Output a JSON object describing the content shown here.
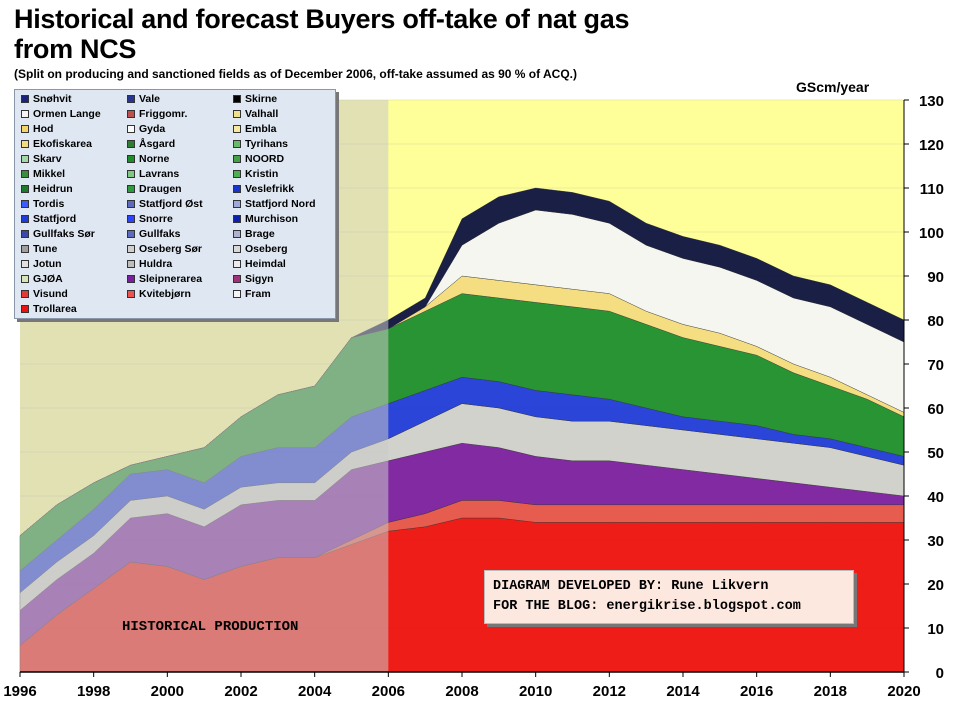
{
  "title": "Historical and forecast Buyers off-take of nat gas from NCS",
  "subtitle": "(Split on producing and sanctioned fields as of December 2006, off-take assumed as 90 % of ACQ.)",
  "unit_label": "GScm/year",
  "historical_label": "HISTORICAL PRODUCTION",
  "credit": {
    "line1": "DIAGRAM DEVELOPED BY: Rune Likvern",
    "line2": "FOR THE BLOG: energikrise.blogspot.com"
  },
  "colors": {
    "plot_bg": "#ffff99",
    "historical_overlay": "#c8c8c8",
    "legend_bg": "#dfe7f2"
  },
  "legend": [
    {
      "name": "Snøhvit",
      "color": "#1a237e"
    },
    {
      "name": "Vale",
      "color": "#283593"
    },
    {
      "name": "Skirne",
      "color": "#000000"
    },
    {
      "name": "Ormen Lange",
      "color": "#f5f5f5"
    },
    {
      "name": "Friggomr.",
      "color": "#c0504d"
    },
    {
      "name": "Valhall",
      "color": "#f0e08a"
    },
    {
      "name": "Hod",
      "color": "#f5d36b"
    },
    {
      "name": "Gyda",
      "color": "#fafafa"
    },
    {
      "name": "Embla",
      "color": "#f7e9a0"
    },
    {
      "name": "Ekofiskarea",
      "color": "#f3dc80"
    },
    {
      "name": "Åsgard",
      "color": "#2e7d32"
    },
    {
      "name": "Tyrihans",
      "color": "#66bb6a"
    },
    {
      "name": "Skarv",
      "color": "#a5d6a7"
    },
    {
      "name": "Norne",
      "color": "#1b8e2a"
    },
    {
      "name": "NOORD",
      "color": "#43a047"
    },
    {
      "name": "Mikkel",
      "color": "#388e3c"
    },
    {
      "name": "Lavrans",
      "color": "#81c784"
    },
    {
      "name": "Kristin",
      "color": "#4caf50"
    },
    {
      "name": "Heidrun",
      "color": "#1e7b2e"
    },
    {
      "name": "Draugen",
      "color": "#2e9b3e"
    },
    {
      "name": "Veslefrikk",
      "color": "#1a33cc"
    },
    {
      "name": "Tordis",
      "color": "#3d5afe"
    },
    {
      "name": "Statfjord Øst",
      "color": "#5c6bc0"
    },
    {
      "name": "Statfjord Nord",
      "color": "#9fa8da"
    },
    {
      "name": "Statfjord",
      "color": "#1f3bdb"
    },
    {
      "name": "Snorre",
      "color": "#2c44ff"
    },
    {
      "name": "Murchison",
      "color": "#0d1fb3"
    },
    {
      "name": "Gullfaks Sør",
      "color": "#3949ab"
    },
    {
      "name": "Gullfaks",
      "color": "#5c6bc0"
    },
    {
      "name": "Brage",
      "color": "#b0b0d0"
    },
    {
      "name": "Tune",
      "color": "#9e9e9e"
    },
    {
      "name": "Oseberg Sør",
      "color": "#cfcfcf"
    },
    {
      "name": "Oseberg",
      "color": "#d9d9d9"
    },
    {
      "name": "Jotun",
      "color": "#e0e0e0"
    },
    {
      "name": "Huldra",
      "color": "#bdbdbd"
    },
    {
      "name": "Heimdal",
      "color": "#ececec"
    },
    {
      "name": "GJØA",
      "color": "#d7e4b5"
    },
    {
      "name": "Sleipnerarea",
      "color": "#7b1fa2"
    },
    {
      "name": "Sigyn",
      "color": "#a0307a"
    },
    {
      "name": "Visund",
      "color": "#e53935"
    },
    {
      "name": "Kvitebjørn",
      "color": "#ef5350"
    },
    {
      "name": "Fram",
      "color": "#f5f5f5"
    },
    {
      "name": "Trollarea",
      "color": "#ee1111"
    }
  ],
  "chart_data": {
    "type": "area",
    "title": "Historical and forecast Buyers off-take of nat gas from NCS",
    "xlabel": "",
    "ylabel": "GScm/year",
    "xlim": [
      1996,
      2020
    ],
    "ylim": [
      0,
      130
    ],
    "x_ticks": [
      "1996",
      "1998",
      "2000",
      "2002",
      "2004",
      "2006",
      "2008",
      "2010",
      "2012",
      "2014",
      "2016",
      "2018",
      "2020"
    ],
    "y_ticks": [
      "0",
      "10",
      "20",
      "30",
      "40",
      "50",
      "60",
      "70",
      "80",
      "90",
      "100",
      "110",
      "120",
      "130"
    ],
    "historical_range": [
      1996,
      2006
    ],
    "x": [
      1996,
      1997,
      1998,
      1999,
      2000,
      2001,
      2002,
      2003,
      2004,
      2005,
      2006,
      2007,
      2008,
      2009,
      2010,
      2011,
      2012,
      2013,
      2014,
      2015,
      2016,
      2017,
      2018,
      2019,
      2020
    ],
    "series": [
      {
        "name": "Trollarea",
        "color": "#ee1111",
        "values": [
          6,
          13,
          19,
          25,
          24,
          21,
          24,
          26,
          26,
          29,
          32,
          33,
          35,
          35,
          34,
          34,
          34,
          34,
          34,
          34,
          34,
          34,
          34,
          34,
          34
        ]
      },
      {
        "name": "Kvitebjørn/Visund",
        "color": "#e5534b",
        "values": [
          0,
          0,
          0,
          0,
          0,
          0,
          0,
          0,
          0,
          1,
          2,
          3,
          4,
          4,
          4,
          4,
          4,
          4,
          4,
          4,
          4,
          4,
          4,
          4,
          4
        ]
      },
      {
        "name": "Sleipnerarea/Sigyn",
        "color": "#7b1fa2",
        "values": [
          8,
          8,
          8,
          10,
          12,
          12,
          14,
          13,
          13,
          16,
          14,
          14,
          13,
          12,
          11,
          10,
          10,
          9,
          8,
          7,
          6,
          5,
          4,
          3,
          2
        ]
      },
      {
        "name": "Oseberg/Tune/Huldra/Heimdal/GJØA",
        "color": "#d0d0d0",
        "values": [
          4,
          4,
          4,
          4,
          4,
          4,
          4,
          4,
          4,
          4,
          5,
          7,
          9,
          9,
          9,
          9,
          9,
          9,
          9,
          9,
          9,
          9,
          9,
          8,
          7
        ]
      },
      {
        "name": "Statfjord/Gullfaks/Snorre/Tordis/Veslefrikk",
        "color": "#1f3bdb",
        "values": [
          5,
          5,
          6,
          6,
          6,
          6,
          7,
          8,
          8,
          8,
          8,
          7,
          6,
          6,
          6,
          6,
          5,
          4,
          3,
          3,
          3,
          2,
          2,
          2,
          2
        ]
      },
      {
        "name": "Heidrun/Draugen/Kristin/Mikkel/Norne/Åsgard/Skarv",
        "color": "#1e8e2e",
        "values": [
          8,
          8,
          6,
          2,
          3,
          8,
          9,
          12,
          14,
          18,
          17,
          18,
          19,
          19,
          20,
          20,
          20,
          19,
          18,
          17,
          16,
          14,
          12,
          11,
          9
        ]
      },
      {
        "name": "Ekofiskarea/Embla/Hod/Gyda/Valhall/Friggomr.",
        "color": "#f3dc80",
        "values": [
          0,
          0,
          0,
          0,
          0,
          0,
          0,
          0,
          0,
          0,
          0,
          1,
          4,
          4,
          4,
          4,
          4,
          3,
          3,
          3,
          2,
          2,
          2,
          1,
          1
        ]
      },
      {
        "name": "Ormen Lange",
        "color": "#f5f5f5",
        "values": [
          0,
          0,
          0,
          0,
          0,
          0,
          0,
          0,
          0,
          0,
          0,
          0,
          7,
          13,
          17,
          17,
          16,
          15,
          15,
          15,
          15,
          15,
          16,
          16,
          16
        ]
      },
      {
        "name": "Snøhvit/Vale/Skirne",
        "color": "#0d1340",
        "values": [
          0,
          0,
          0,
          0,
          0,
          0,
          0,
          0,
          0,
          0,
          2,
          2,
          6,
          6,
          5,
          5,
          5,
          5,
          5,
          5,
          5,
          5,
          5,
          5,
          5
        ]
      }
    ]
  }
}
